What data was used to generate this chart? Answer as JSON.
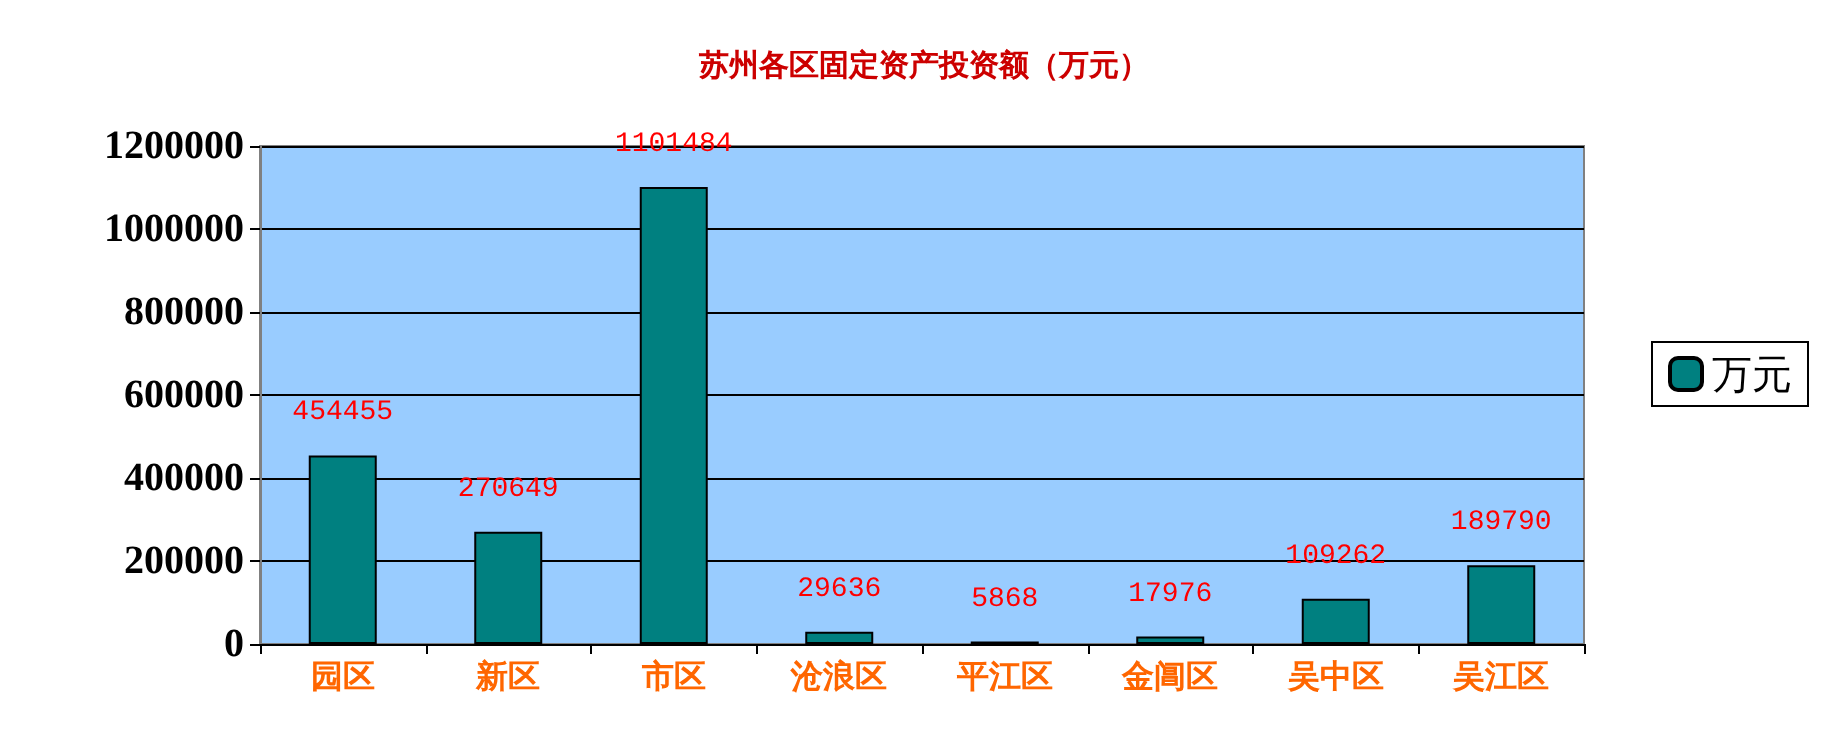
{
  "chart_data": {
    "type": "bar",
    "title": "苏州各区固定资产投资额（万元）",
    "categories": [
      "园区",
      "新区",
      "市区",
      "沧浪区",
      "平江区",
      "金阊区",
      "吴中区",
      "吴江区"
    ],
    "series": [
      {
        "name": "万元",
        "color": "#008080",
        "values": [
          454455,
          270649,
          1101484,
          29636,
          5868,
          17976,
          109262,
          189790
        ]
      }
    ],
    "ylim": [
      0,
      1200000
    ],
    "yticks": [
      0,
      200000,
      400000,
      600000,
      800000,
      1000000,
      1200000
    ],
    "grid": "y",
    "legend": "right",
    "data_labels": true
  }
}
